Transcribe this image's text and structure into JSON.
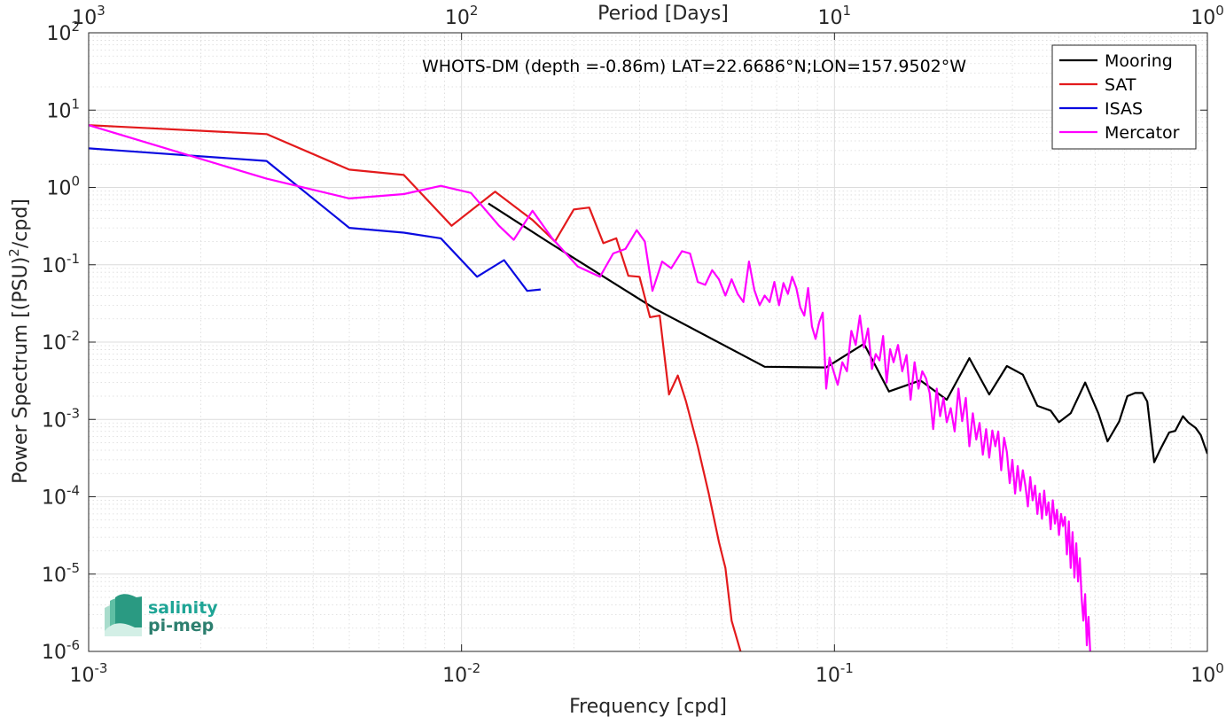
{
  "chart_data": {
    "type": "line",
    "title": "WHOTS-DM (depth =-0.86m) LAT=22.6686°N;LON=157.9502°W",
    "xlabel": "Frequency [cpd]",
    "ylabel": "Power Spectrum [(PSU)",
    "ylabel_sup": "2",
    "ylabel_tail": "/cpd]",
    "top_label": "Period [Days]",
    "x_scale": "log",
    "y_scale": "log",
    "xlim": [
      0.001,
      1
    ],
    "ylim": [
      1e-06,
      100
    ],
    "grid": true,
    "legend_position": "top-right",
    "x_ticks": [
      {
        "value": 0.001,
        "base": "10",
        "exp": "-3"
      },
      {
        "value": 0.01,
        "base": "10",
        "exp": "-2"
      },
      {
        "value": 0.1,
        "base": "10",
        "exp": "-1"
      },
      {
        "value": 1,
        "base": "10",
        "exp": "0"
      }
    ],
    "y_ticks": [
      {
        "value": 1e-06,
        "base": "10",
        "exp": "-6"
      },
      {
        "value": 1e-05,
        "base": "10",
        "exp": "-5"
      },
      {
        "value": 0.0001,
        "base": "10",
        "exp": "-4"
      },
      {
        "value": 0.001,
        "base": "10",
        "exp": "-3"
      },
      {
        "value": 0.01,
        "base": "10",
        "exp": "-2"
      },
      {
        "value": 0.1,
        "base": "10",
        "exp": "-1"
      },
      {
        "value": 1,
        "base": "10",
        "exp": "0"
      },
      {
        "value": 10,
        "base": "10",
        "exp": "1"
      },
      {
        "value": 100,
        "base": "10",
        "exp": "2"
      }
    ],
    "top_ticks": [
      {
        "value": 0.001,
        "base": "10",
        "exp": "3"
      },
      {
        "value": 0.01,
        "base": "10",
        "exp": "2"
      },
      {
        "value": 0.1,
        "base": "10",
        "exp": "1"
      },
      {
        "value": 1,
        "base": "10",
        "exp": "0"
      }
    ],
    "series": [
      {
        "name": "Mooring",
        "color": "#000000",
        "points": [
          [
            0.0118,
            0.62
          ],
          [
            0.017,
            0.2
          ],
          [
            0.033,
            0.027
          ],
          [
            0.065,
            0.0048
          ],
          [
            0.095,
            0.0047
          ],
          [
            0.12,
            0.0095
          ],
          [
            0.14,
            0.0023
          ],
          [
            0.17,
            0.0032
          ],
          [
            0.2,
            0.0018
          ],
          [
            0.23,
            0.0062
          ],
          [
            0.26,
            0.0021
          ],
          [
            0.29,
            0.0049
          ],
          [
            0.32,
            0.0038
          ],
          [
            0.35,
            0.0015
          ],
          [
            0.38,
            0.0013
          ],
          [
            0.4,
            0.00092
          ],
          [
            0.43,
            0.0012
          ],
          [
            0.47,
            0.003
          ],
          [
            0.51,
            0.0012
          ],
          [
            0.54,
            0.00052
          ],
          [
            0.58,
            0.00094
          ],
          [
            0.61,
            0.002
          ],
          [
            0.64,
            0.0022
          ],
          [
            0.67,
            0.0022
          ],
          [
            0.69,
            0.0017
          ],
          [
            0.72,
            0.00028
          ],
          [
            0.75,
            0.00042
          ],
          [
            0.79,
            0.00068
          ],
          [
            0.82,
            0.00071
          ],
          [
            0.86,
            0.0011
          ],
          [
            0.89,
            0.00091
          ],
          [
            0.93,
            0.00078
          ],
          [
            0.96,
            0.00063
          ],
          [
            1.0,
            0.00036
          ]
        ]
      },
      {
        "name": "SAT",
        "color": "#e31a1c",
        "points": [
          [
            0.001,
            6.4
          ],
          [
            0.003,
            4.9
          ],
          [
            0.005,
            1.7
          ],
          [
            0.007,
            1.45
          ],
          [
            0.0094,
            0.32
          ],
          [
            0.0123,
            0.88
          ],
          [
            0.0155,
            0.38
          ],
          [
            0.0178,
            0.2
          ],
          [
            0.02,
            0.52
          ],
          [
            0.022,
            0.55
          ],
          [
            0.024,
            0.19
          ],
          [
            0.026,
            0.22
          ],
          [
            0.028,
            0.072
          ],
          [
            0.03,
            0.07
          ],
          [
            0.032,
            0.021
          ],
          [
            0.034,
            0.022
          ],
          [
            0.036,
            0.0021
          ],
          [
            0.038,
            0.0037
          ],
          [
            0.04,
            0.0017
          ],
          [
            0.043,
            0.00045
          ],
          [
            0.046,
            0.00011
          ],
          [
            0.049,
            2.6e-05
          ],
          [
            0.051,
            1.2e-05
          ],
          [
            0.053,
            2.5e-06
          ],
          [
            0.056,
            1e-06
          ]
        ]
      },
      {
        "name": "ISAS",
        "color": "#0a0ae0",
        "points": [
          [
            0.001,
            3.2
          ],
          [
            0.003,
            2.2
          ],
          [
            0.005,
            0.3
          ],
          [
            0.007,
            0.26
          ],
          [
            0.0088,
            0.22
          ],
          [
            0.011,
            0.07
          ],
          [
            0.013,
            0.115
          ],
          [
            0.015,
            0.046
          ],
          [
            0.0163,
            0.048
          ]
        ]
      },
      {
        "name": "Mercator",
        "color": "#ff00ff",
        "points": [
          [
            0.001,
            6.4
          ],
          [
            0.003,
            1.3
          ],
          [
            0.005,
            0.72
          ],
          [
            0.007,
            0.82
          ],
          [
            0.0088,
            1.05
          ],
          [
            0.0106,
            0.85
          ],
          [
            0.0126,
            0.32
          ],
          [
            0.0138,
            0.21
          ],
          [
            0.0155,
            0.5
          ],
          [
            0.0175,
            0.22
          ],
          [
            0.0205,
            0.095
          ],
          [
            0.0235,
            0.07
          ],
          [
            0.0255,
            0.14
          ],
          [
            0.0275,
            0.16
          ],
          [
            0.0295,
            0.28
          ],
          [
            0.031,
            0.2
          ],
          [
            0.0325,
            0.046
          ],
          [
            0.0345,
            0.11
          ],
          [
            0.0365,
            0.09
          ],
          [
            0.039,
            0.15
          ],
          [
            0.041,
            0.14
          ],
          [
            0.043,
            0.06
          ],
          [
            0.045,
            0.055
          ],
          [
            0.047,
            0.085
          ],
          [
            0.049,
            0.065
          ],
          [
            0.051,
            0.04
          ],
          [
            0.053,
            0.065
          ],
          [
            0.055,
            0.042
          ],
          [
            0.057,
            0.033
          ],
          [
            0.059,
            0.11
          ],
          [
            0.061,
            0.047
          ],
          [
            0.063,
            0.03
          ],
          [
            0.065,
            0.04
          ],
          [
            0.067,
            0.033
          ],
          [
            0.069,
            0.06
          ],
          [
            0.071,
            0.03
          ],
          [
            0.073,
            0.058
          ],
          [
            0.075,
            0.042
          ],
          [
            0.077,
            0.07
          ],
          [
            0.079,
            0.05
          ],
          [
            0.081,
            0.028
          ],
          [
            0.083,
            0.022
          ],
          [
            0.085,
            0.05
          ],
          [
            0.087,
            0.016
          ],
          [
            0.089,
            0.011
          ],
          [
            0.091,
            0.018
          ],
          [
            0.093,
            0.024
          ],
          [
            0.095,
            0.0025
          ],
          [
            0.097,
            0.0063
          ],
          [
            0.099,
            0.0045
          ],
          [
            0.102,
            0.0028
          ],
          [
            0.105,
            0.0055
          ],
          [
            0.108,
            0.0042
          ],
          [
            0.111,
            0.014
          ],
          [
            0.114,
            0.0092
          ],
          [
            0.117,
            0.022
          ],
          [
            0.12,
            0.0085
          ],
          [
            0.123,
            0.015
          ],
          [
            0.126,
            0.0045
          ],
          [
            0.129,
            0.007
          ],
          [
            0.132,
            0.0058
          ],
          [
            0.135,
            0.012
          ],
          [
            0.138,
            0.003
          ],
          [
            0.141,
            0.0081
          ],
          [
            0.144,
            0.0055
          ],
          [
            0.148,
            0.0092
          ],
          [
            0.152,
            0.0042
          ],
          [
            0.156,
            0.0068
          ],
          [
            0.16,
            0.0018
          ],
          [
            0.164,
            0.0055
          ],
          [
            0.168,
            0.0025
          ],
          [
            0.172,
            0.0042
          ],
          [
            0.176,
            0.0034
          ],
          [
            0.18,
            0.0022
          ],
          [
            0.184,
            0.00075
          ],
          [
            0.188,
            0.0025
          ],
          [
            0.192,
            0.0011
          ],
          [
            0.196,
            0.0019
          ],
          [
            0.2,
            0.00092
          ],
          [
            0.205,
            0.0014
          ],
          [
            0.21,
            0.0007
          ],
          [
            0.215,
            0.0025
          ],
          [
            0.22,
            0.00095
          ],
          [
            0.225,
            0.0019
          ],
          [
            0.23,
            0.00045
          ],
          [
            0.235,
            0.0012
          ],
          [
            0.24,
            0.00055
          ],
          [
            0.245,
            0.0009
          ],
          [
            0.25,
            0.00035
          ],
          [
            0.255,
            0.00075
          ],
          [
            0.26,
            0.00032
          ],
          [
            0.265,
            0.00072
          ],
          [
            0.27,
            0.00045
          ],
          [
            0.275,
            0.0007
          ],
          [
            0.28,
            0.00022
          ],
          [
            0.285,
            0.00058
          ],
          [
            0.29,
            0.00038
          ],
          [
            0.295,
            0.00015
          ],
          [
            0.3,
            0.0003
          ],
          [
            0.305,
            0.00011
          ],
          [
            0.31,
            0.00025
          ],
          [
            0.315,
            0.00012
          ],
          [
            0.32,
            0.00022
          ],
          [
            0.325,
            0.00014
          ],
          [
            0.33,
            7.5e-05
          ],
          [
            0.335,
            0.00018
          ],
          [
            0.34,
            9e-05
          ],
          [
            0.345,
            0.00014
          ],
          [
            0.35,
            6e-05
          ],
          [
            0.355,
            0.00011
          ],
          [
            0.36,
            5.2e-05
          ],
          [
            0.365,
            0.00012
          ],
          [
            0.37,
            5.8e-05
          ],
          [
            0.375,
            8.5e-05
          ],
          [
            0.38,
            3.8e-05
          ],
          [
            0.385,
            9e-05
          ],
          [
            0.39,
            4.5e-05
          ],
          [
            0.395,
            6.8e-05
          ],
          [
            0.4,
            3.2e-05
          ],
          [
            0.405,
            6e-05
          ],
          [
            0.41,
            4.2e-05
          ],
          [
            0.415,
            5.5e-05
          ],
          [
            0.42,
            1.8e-05
          ],
          [
            0.425,
            4.8e-05
          ],
          [
            0.43,
            1.2e-05
          ],
          [
            0.435,
            3.5e-05
          ],
          [
            0.44,
            9e-06
          ],
          [
            0.445,
            2.5e-05
          ],
          [
            0.45,
            8e-06
          ],
          [
            0.455,
            1.6e-05
          ],
          [
            0.46,
            5e-06
          ],
          [
            0.465,
            2.5e-06
          ],
          [
            0.47,
            5.5e-06
          ],
          [
            0.475,
            1.2e-06
          ],
          [
            0.48,
            2.8e-06
          ],
          [
            0.485,
            1e-06
          ]
        ]
      }
    ]
  },
  "logo": {
    "line1": "salinity",
    "line2": "pi-mep"
  }
}
